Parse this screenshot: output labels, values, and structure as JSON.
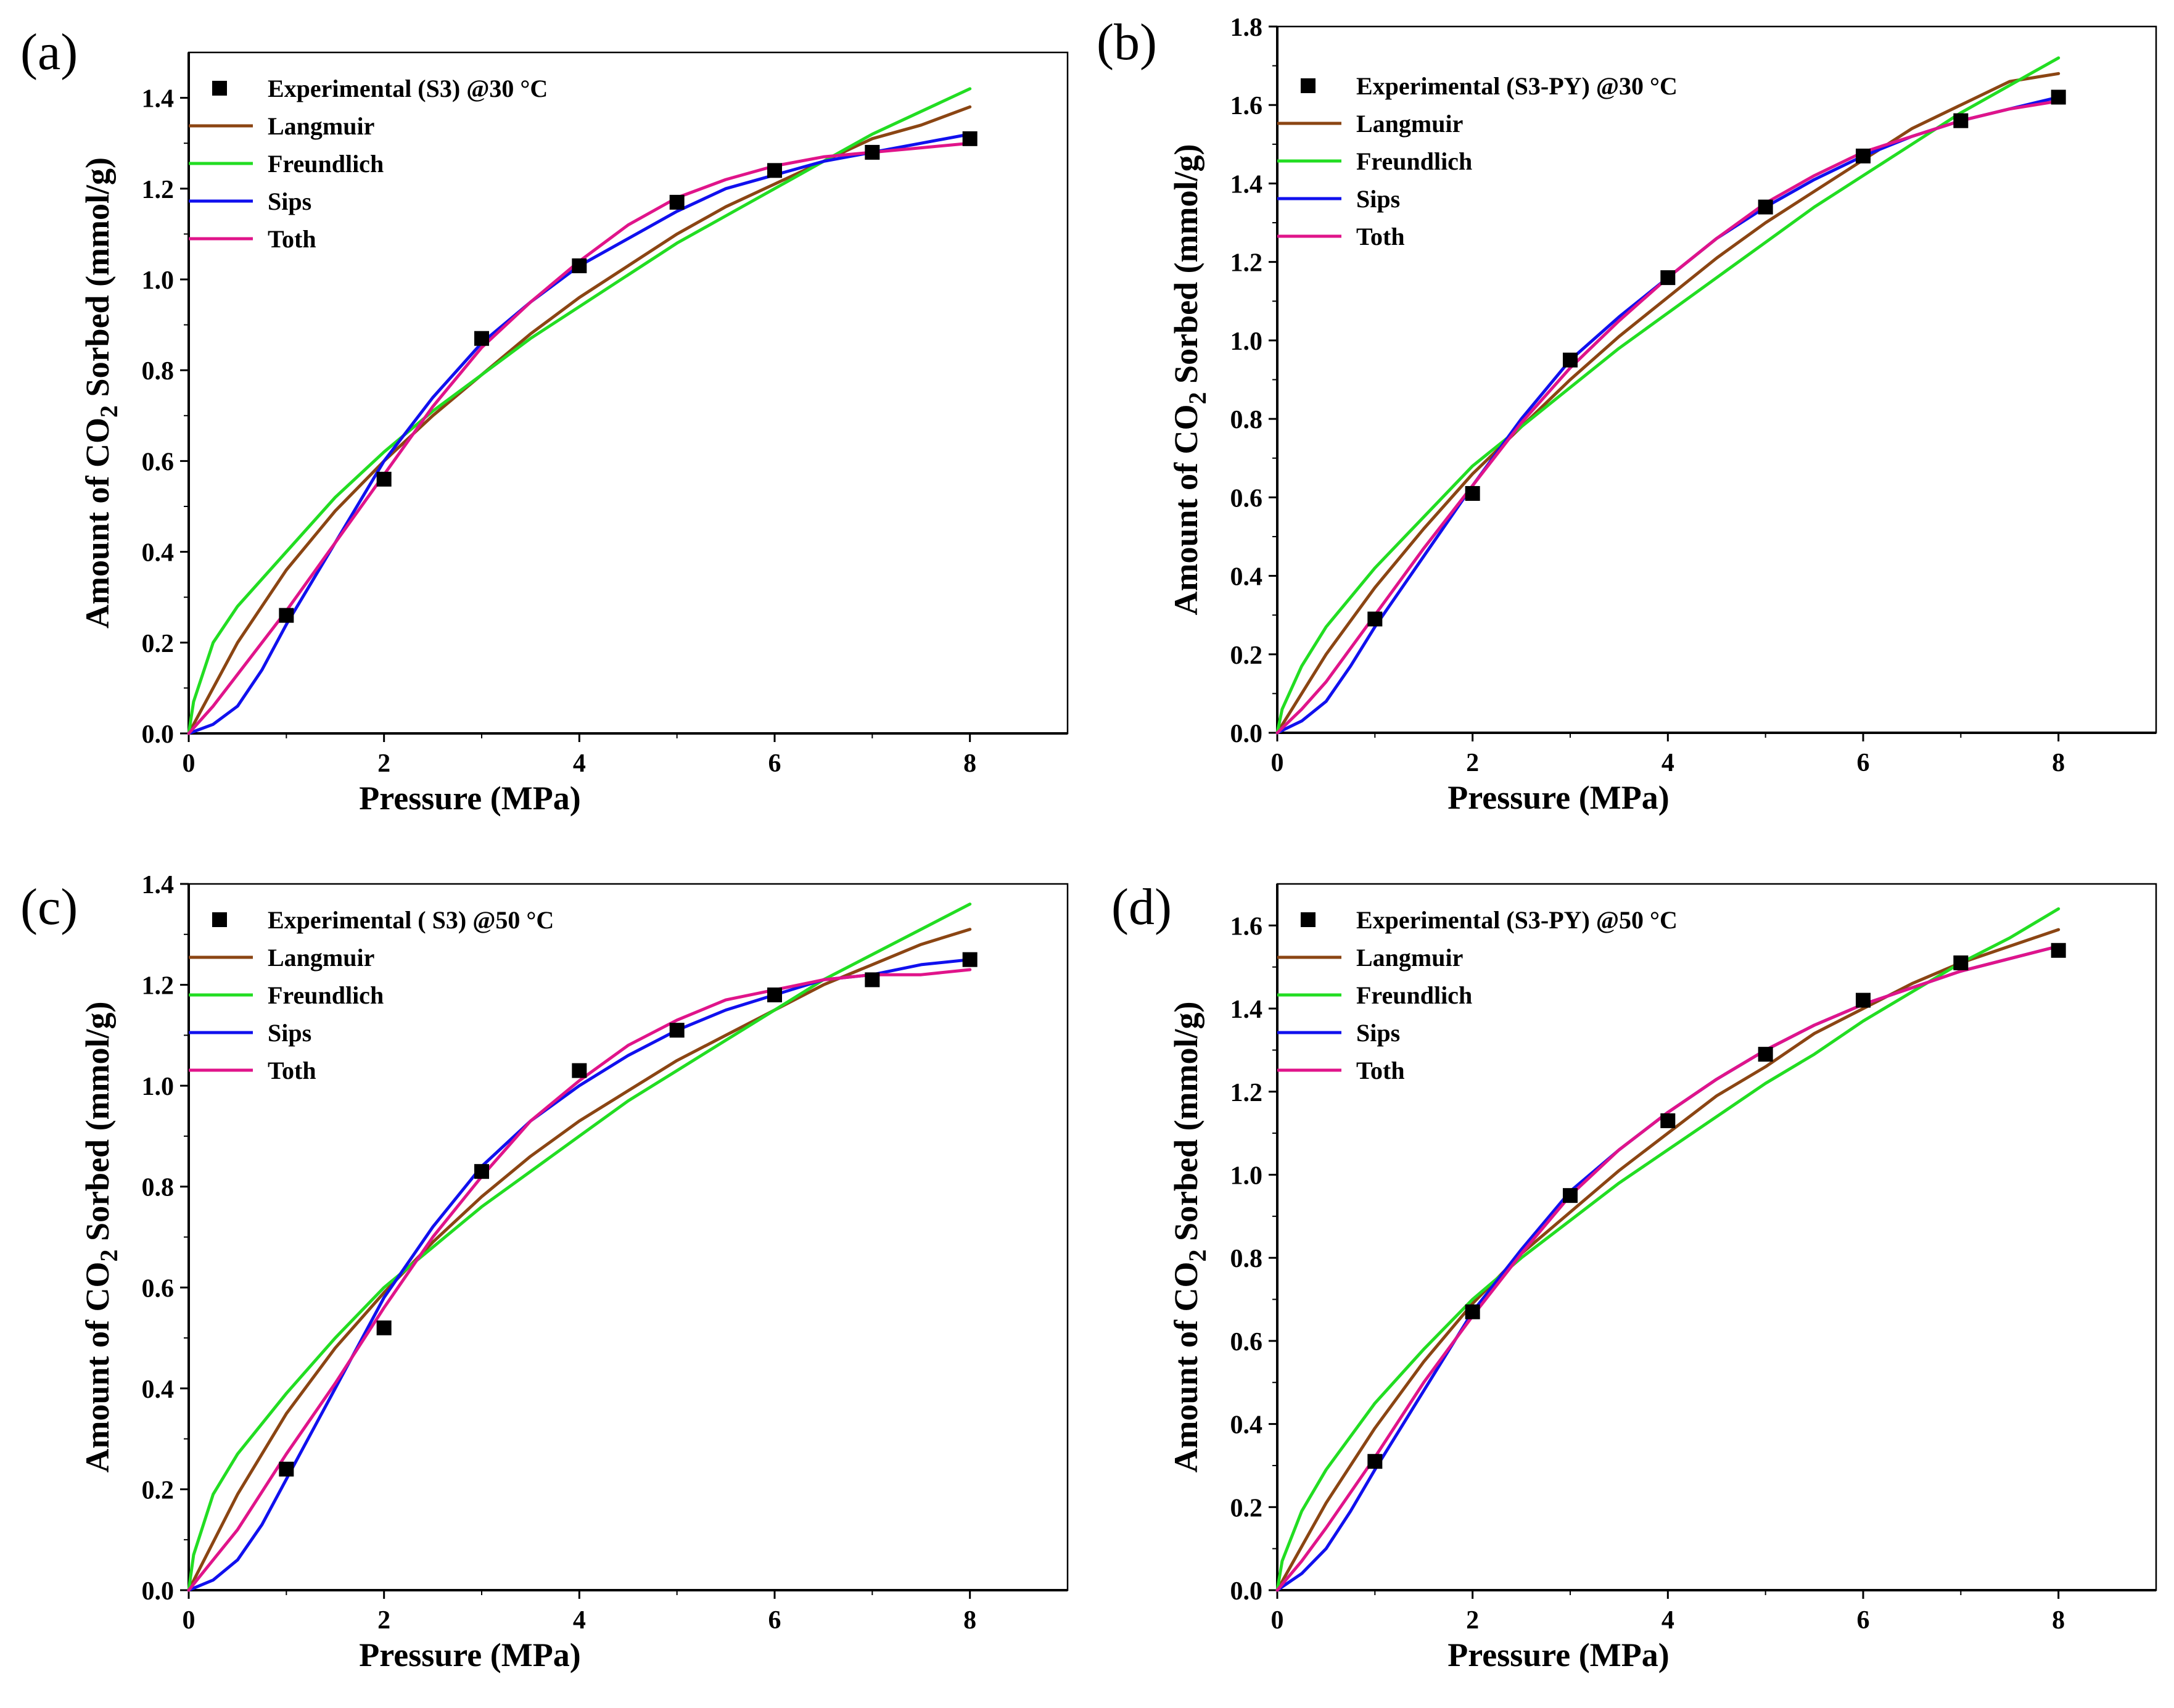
{
  "figure": {
    "colors": {
      "Langmuir": "#8B4513",
      "Freundlich": "#22DD22",
      "Sips": "#1010EE",
      "Toth": "#E0148A",
      "Experimental": "#000000"
    }
  },
  "chart_data": [
    {
      "panel": "(a)",
      "type": "scatter",
      "xlabel": "Pressure (MPa)",
      "ylabel_prefix": "Amount of CO",
      "ylabel_sub": "2",
      "ylabel_suffix": " Sorbed (mmol/g)",
      "xlim": [
        0,
        9
      ],
      "ylim": [
        0,
        1.5
      ],
      "xticks": [
        0,
        2,
        4,
        6,
        8
      ],
      "xtick_labels": [
        "0",
        "2",
        "4",
        "6",
        "8"
      ],
      "yticks": [
        0,
        0.2,
        0.4,
        0.6,
        0.8,
        1.0,
        1.2,
        1.4
      ],
      "ytick_labels": [
        "0.0",
        "0.2",
        "0.4",
        "0.6",
        "0.8",
        "1.0",
        "1.2",
        "1.4"
      ],
      "experimental": {
        "name": "Experimental (S3) @30 °C",
        "x": [
          1,
          2,
          3,
          4,
          5,
          6,
          7,
          8
        ],
        "y": [
          0.26,
          0.56,
          0.87,
          1.03,
          1.17,
          1.24,
          1.28,
          1.31
        ]
      },
      "series": [
        {
          "name": "Langmuir",
          "x": [
            0,
            0.5,
            1,
            1.5,
            2,
            2.5,
            3,
            3.5,
            4,
            4.5,
            5,
            5.5,
            6,
            6.5,
            7,
            7.5,
            8
          ],
          "y": [
            0,
            0.2,
            0.36,
            0.49,
            0.6,
            0.7,
            0.79,
            0.88,
            0.96,
            1.03,
            1.1,
            1.16,
            1.21,
            1.26,
            1.31,
            1.34,
            1.38
          ]
        },
        {
          "name": "Freundlich",
          "x": [
            0,
            0.05,
            0.25,
            0.5,
            1,
            1.5,
            2,
            2.5,
            3,
            3.5,
            4,
            4.5,
            5,
            5.5,
            6,
            6.5,
            7,
            7.5,
            8
          ],
          "y": [
            0,
            0.07,
            0.2,
            0.28,
            0.4,
            0.52,
            0.62,
            0.71,
            0.79,
            0.87,
            0.94,
            1.01,
            1.08,
            1.14,
            1.2,
            1.26,
            1.32,
            1.37,
            1.42
          ]
        },
        {
          "name": "Sips",
          "x": [
            0,
            0.25,
            0.5,
            0.75,
            1,
            1.5,
            2,
            2.5,
            3,
            3.5,
            4,
            4.5,
            5,
            5.5,
            6,
            6.5,
            7,
            7.5,
            8
          ],
          "y": [
            0,
            0.02,
            0.06,
            0.14,
            0.24,
            0.42,
            0.6,
            0.74,
            0.86,
            0.95,
            1.03,
            1.09,
            1.15,
            1.2,
            1.23,
            1.26,
            1.28,
            1.3,
            1.32
          ]
        },
        {
          "name": "Toth",
          "x": [
            0,
            0.25,
            0.5,
            1,
            1.5,
            2,
            2.5,
            3,
            3.5,
            4,
            4.5,
            5,
            5.5,
            6,
            6.5,
            7,
            7.5,
            8
          ],
          "y": [
            0,
            0.06,
            0.13,
            0.27,
            0.42,
            0.57,
            0.72,
            0.85,
            0.95,
            1.04,
            1.12,
            1.18,
            1.22,
            1.25,
            1.27,
            1.28,
            1.29,
            1.3
          ]
        }
      ]
    },
    {
      "panel": "(b)",
      "type": "scatter",
      "xlabel": "Pressure (MPa)",
      "ylabel_prefix": "Amount of CO",
      "ylabel_sub": "2",
      "ylabel_suffix": " Sorbed (mmol/g)",
      "xlim": [
        0,
        9
      ],
      "ylim": [
        0,
        1.8
      ],
      "xticks": [
        0,
        2,
        4,
        6,
        8
      ],
      "xtick_labels": [
        "0",
        "2",
        "4",
        "6",
        "8"
      ],
      "yticks": [
        0,
        0.2,
        0.4,
        0.6,
        0.8,
        1.0,
        1.2,
        1.4,
        1.6,
        1.8
      ],
      "ytick_labels": [
        "0.0",
        "0.2",
        "0.4",
        "0.6",
        "0.8",
        "1.0",
        "1.2",
        "1.4",
        "1.6",
        "1.8"
      ],
      "experimental": {
        "name": "Experimental (S3-PY) @30 °C",
        "x": [
          1,
          2,
          3,
          4,
          5,
          6,
          7,
          8
        ],
        "y": [
          0.29,
          0.61,
          0.95,
          1.16,
          1.34,
          1.47,
          1.56,
          1.62
        ]
      },
      "series": [
        {
          "name": "Langmuir",
          "x": [
            0,
            0.5,
            1,
            1.5,
            2,
            2.5,
            3,
            3.5,
            4,
            4.5,
            5,
            5.5,
            6,
            6.5,
            7,
            7.5,
            8
          ],
          "y": [
            0,
            0.2,
            0.37,
            0.52,
            0.66,
            0.78,
            0.9,
            1.01,
            1.11,
            1.21,
            1.3,
            1.38,
            1.46,
            1.54,
            1.6,
            1.66,
            1.68
          ]
        },
        {
          "name": "Freundlich",
          "x": [
            0,
            0.05,
            0.25,
            0.5,
            1,
            1.5,
            2,
            2.5,
            3,
            3.5,
            4,
            4.5,
            5,
            5.5,
            6,
            6.5,
            7,
            7.5,
            8
          ],
          "y": [
            0,
            0.06,
            0.17,
            0.27,
            0.42,
            0.55,
            0.68,
            0.78,
            0.88,
            0.98,
            1.07,
            1.16,
            1.25,
            1.34,
            1.42,
            1.5,
            1.58,
            1.65,
            1.72
          ]
        },
        {
          "name": "Sips",
          "x": [
            0,
            0.25,
            0.5,
            0.75,
            1,
            1.5,
            2,
            2.5,
            3,
            3.5,
            4,
            4.5,
            5,
            5.5,
            6,
            6.5,
            7,
            7.5,
            8
          ],
          "y": [
            0,
            0.03,
            0.08,
            0.17,
            0.27,
            0.45,
            0.63,
            0.8,
            0.95,
            1.06,
            1.16,
            1.26,
            1.34,
            1.41,
            1.47,
            1.52,
            1.56,
            1.59,
            1.62
          ]
        },
        {
          "name": "Toth",
          "x": [
            0,
            0.25,
            0.5,
            1,
            1.5,
            2,
            2.5,
            3,
            3.5,
            4,
            4.5,
            5,
            5.5,
            6,
            6.5,
            7,
            7.5,
            8
          ],
          "y": [
            0,
            0.06,
            0.13,
            0.3,
            0.47,
            0.63,
            0.79,
            0.93,
            1.05,
            1.16,
            1.26,
            1.35,
            1.42,
            1.48,
            1.52,
            1.56,
            1.59,
            1.61
          ]
        }
      ]
    },
    {
      "panel": "(c)",
      "type": "scatter",
      "xlabel": "Pressure (MPa)",
      "ylabel_prefix": "Amount of CO",
      "ylabel_sub": "2",
      "ylabel_suffix": " Sorbed (mmol/g)",
      "xlim": [
        0,
        9
      ],
      "ylim": [
        0,
        1.4
      ],
      "xticks": [
        0,
        2,
        4,
        6,
        8
      ],
      "xtick_labels": [
        "0",
        "2",
        "4",
        "6",
        "8"
      ],
      "yticks": [
        0,
        0.2,
        0.4,
        0.6,
        0.8,
        1.0,
        1.2,
        1.4
      ],
      "ytick_labels": [
        "0.0",
        "0.2",
        "0.4",
        "0.6",
        "0.8",
        "1.0",
        "1.2",
        "1.4"
      ],
      "experimental": {
        "name": "Experimental ( S3)  @50 °C",
        "x": [
          1,
          2,
          3,
          4,
          5,
          6,
          7,
          8
        ],
        "y": [
          0.24,
          0.52,
          0.83,
          1.03,
          1.11,
          1.18,
          1.21,
          1.25
        ]
      },
      "series": [
        {
          "name": "Langmuir",
          "x": [
            0,
            0.5,
            1,
            1.5,
            2,
            2.5,
            3,
            3.5,
            4,
            4.5,
            5,
            5.5,
            6,
            6.5,
            7,
            7.5,
            8
          ],
          "y": [
            0,
            0.19,
            0.35,
            0.48,
            0.59,
            0.69,
            0.78,
            0.86,
            0.93,
            0.99,
            1.05,
            1.1,
            1.15,
            1.2,
            1.24,
            1.28,
            1.31
          ]
        },
        {
          "name": "Freundlich",
          "x": [
            0,
            0.05,
            0.25,
            0.5,
            1,
            1.5,
            2,
            2.5,
            3,
            3.5,
            4,
            4.5,
            5,
            5.5,
            6,
            6.5,
            7,
            7.5,
            8
          ],
          "y": [
            0,
            0.07,
            0.19,
            0.27,
            0.39,
            0.5,
            0.6,
            0.68,
            0.76,
            0.83,
            0.9,
            0.97,
            1.03,
            1.09,
            1.15,
            1.21,
            1.26,
            1.31,
            1.36
          ]
        },
        {
          "name": "Sips",
          "x": [
            0,
            0.25,
            0.5,
            0.75,
            1,
            1.5,
            2,
            2.5,
            3,
            3.5,
            4,
            4.5,
            5,
            5.5,
            6,
            6.5,
            7,
            7.5,
            8
          ],
          "y": [
            0,
            0.02,
            0.06,
            0.13,
            0.22,
            0.4,
            0.58,
            0.72,
            0.84,
            0.93,
            1.0,
            1.06,
            1.11,
            1.15,
            1.18,
            1.21,
            1.22,
            1.24,
            1.25
          ]
        },
        {
          "name": "Toth",
          "x": [
            0,
            0.25,
            0.5,
            1,
            1.5,
            2,
            2.5,
            3,
            3.5,
            4,
            4.5,
            5,
            5.5,
            6,
            6.5,
            7,
            7.5,
            8
          ],
          "y": [
            0,
            0.06,
            0.12,
            0.27,
            0.41,
            0.56,
            0.7,
            0.82,
            0.93,
            1.01,
            1.08,
            1.13,
            1.17,
            1.19,
            1.21,
            1.22,
            1.22,
            1.23
          ]
        }
      ]
    },
    {
      "panel": "(d)",
      "type": "scatter",
      "xlabel": "Pressure (MPa)",
      "ylabel_prefix": "Amount of CO",
      "ylabel_sub": "2",
      "ylabel_suffix": " Sorbed (mmol/g)",
      "xlim": [
        0,
        9
      ],
      "ylim": [
        0,
        1.7
      ],
      "xticks": [
        0,
        2,
        4,
        6,
        8
      ],
      "xtick_labels": [
        "0",
        "2",
        "4",
        "6",
        "8"
      ],
      "yticks": [
        0,
        0.2,
        0.4,
        0.6,
        0.8,
        1.0,
        1.2,
        1.4,
        1.6
      ],
      "ytick_labels": [
        "0.0",
        "0.2",
        "0.4",
        "0.6",
        "0.8",
        "1.0",
        "1.2",
        "1.4",
        "1.6"
      ],
      "experimental": {
        "name": "Experimental (S3-PY)  @50 °C",
        "x": [
          1,
          2,
          3,
          4,
          5,
          6,
          7,
          8
        ],
        "y": [
          0.31,
          0.67,
          0.95,
          1.13,
          1.29,
          1.42,
          1.51,
          1.54
        ]
      },
      "series": [
        {
          "name": "Langmuir",
          "x": [
            0,
            0.5,
            1,
            1.5,
            2,
            2.5,
            3,
            3.5,
            4,
            4.5,
            5,
            5.5,
            6,
            6.5,
            7,
            7.5,
            8
          ],
          "y": [
            0,
            0.21,
            0.39,
            0.55,
            0.69,
            0.81,
            0.91,
            1.01,
            1.1,
            1.19,
            1.26,
            1.34,
            1.4,
            1.46,
            1.51,
            1.55,
            1.59
          ]
        },
        {
          "name": "Freundlich",
          "x": [
            0,
            0.05,
            0.25,
            0.5,
            1,
            1.5,
            2,
            2.5,
            3,
            3.5,
            4,
            4.5,
            5,
            5.5,
            6,
            6.5,
            7,
            7.5,
            8
          ],
          "y": [
            0,
            0.07,
            0.19,
            0.29,
            0.45,
            0.58,
            0.7,
            0.8,
            0.89,
            0.98,
            1.06,
            1.14,
            1.22,
            1.29,
            1.37,
            1.44,
            1.51,
            1.57,
            1.64
          ]
        },
        {
          "name": "Sips",
          "x": [
            0,
            0.25,
            0.5,
            0.75,
            1,
            1.5,
            2,
            2.5,
            3,
            3.5,
            4,
            4.5,
            5,
            5.5,
            6,
            6.5,
            7,
            7.5,
            8
          ],
          "y": [
            0,
            0.04,
            0.1,
            0.19,
            0.29,
            0.48,
            0.67,
            0.82,
            0.96,
            1.06,
            1.15,
            1.23,
            1.3,
            1.36,
            1.41,
            1.45,
            1.49,
            1.52,
            1.55
          ]
        },
        {
          "name": "Toth",
          "x": [
            0,
            0.25,
            0.5,
            1,
            1.5,
            2,
            2.5,
            3,
            3.5,
            4,
            4.5,
            5,
            5.5,
            6,
            6.5,
            7,
            7.5,
            8
          ],
          "y": [
            0,
            0.07,
            0.15,
            0.32,
            0.5,
            0.66,
            0.81,
            0.95,
            1.06,
            1.15,
            1.23,
            1.3,
            1.36,
            1.41,
            1.45,
            1.49,
            1.52,
            1.55
          ]
        }
      ]
    }
  ]
}
